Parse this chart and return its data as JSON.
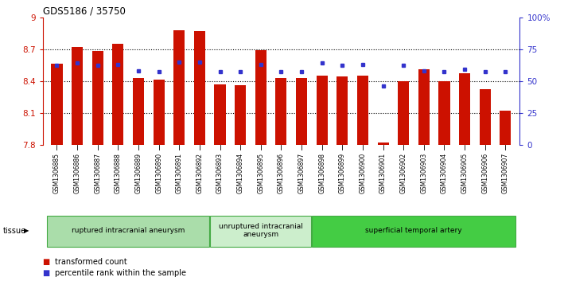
{
  "title": "GDS5186 / 35750",
  "samples": [
    "GSM1306885",
    "GSM1306886",
    "GSM1306887",
    "GSM1306888",
    "GSM1306889",
    "GSM1306890",
    "GSM1306891",
    "GSM1306892",
    "GSM1306893",
    "GSM1306894",
    "GSM1306895",
    "GSM1306896",
    "GSM1306897",
    "GSM1306898",
    "GSM1306899",
    "GSM1306900",
    "GSM1306901",
    "GSM1306902",
    "GSM1306903",
    "GSM1306904",
    "GSM1306905",
    "GSM1306906",
    "GSM1306907"
  ],
  "bar_values": [
    8.56,
    8.72,
    8.68,
    8.75,
    8.43,
    8.41,
    8.88,
    8.87,
    8.37,
    8.36,
    8.69,
    8.43,
    8.43,
    8.45,
    8.44,
    8.45,
    7.82,
    8.4,
    8.51,
    8.4,
    8.47,
    8.32,
    8.12
  ],
  "percentile_values": [
    62,
    64,
    62,
    63,
    58,
    57,
    65,
    65,
    57,
    57,
    63,
    57,
    57,
    64,
    62,
    63,
    46,
    62,
    58,
    57,
    59,
    57,
    57
  ],
  "bar_color": "#cc1100",
  "dot_color": "#3333cc",
  "ylim_left": [
    7.8,
    9.0
  ],
  "ylim_right": [
    0,
    100
  ],
  "yticks_left": [
    7.8,
    8.1,
    8.4,
    8.7,
    9.0
  ],
  "ytick_left_labels": [
    "7.8",
    "8.1",
    "8.4",
    "8.7",
    "9"
  ],
  "yticks_right": [
    0,
    25,
    50,
    75,
    100
  ],
  "ytick_labels_right": [
    "0",
    "25",
    "50",
    "75",
    "100%"
  ],
  "grid_values": [
    8.1,
    8.4,
    8.7
  ],
  "groups": [
    {
      "label": "ruptured intracranial aneurysm",
      "start": 0,
      "end": 7,
      "color": "#aaddaa",
      "edge": "#44aa44"
    },
    {
      "label": "unruptured intracranial\naneurysm",
      "start": 8,
      "end": 12,
      "color": "#cceecc",
      "edge": "#44aa44"
    },
    {
      "label": "superficial temporal artery",
      "start": 13,
      "end": 22,
      "color": "#44cc44",
      "edge": "#44aa44"
    }
  ],
  "tissue_label": "tissue",
  "bar_bottom": 7.8,
  "bar_width": 0.55,
  "bg_color": "#ffffff",
  "xticklabel_bg": "#dddddd",
  "legend_bar_label": "transformed count",
  "legend_dot_label": "percentile rank within the sample"
}
